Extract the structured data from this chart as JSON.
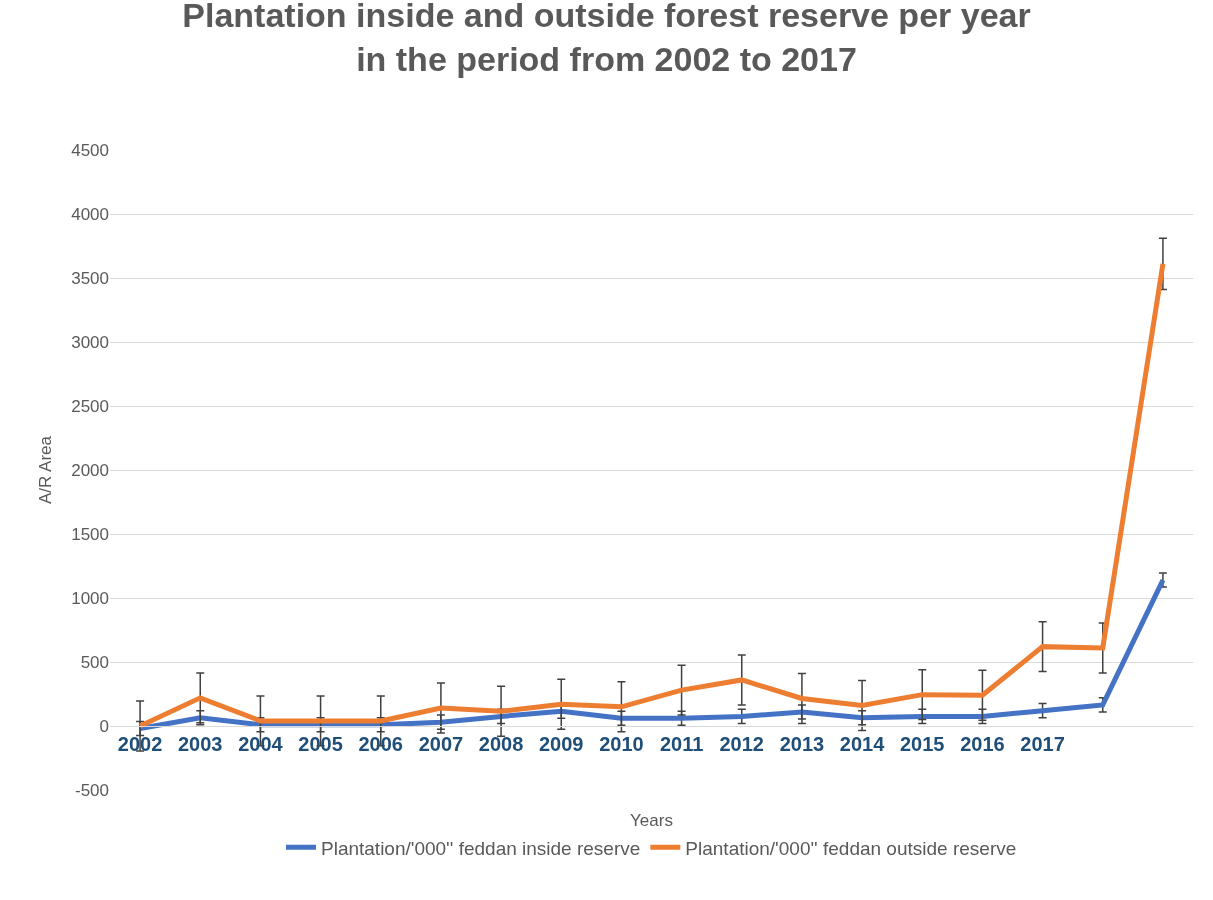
{
  "chart_data": {
    "type": "line",
    "title": "Plantation inside and outside forest reserve per year\nin the period from 2002 to 2017",
    "xlabel": "Years",
    "ylabel": "A/R Area",
    "categories": [
      "2002",
      "2003",
      "2004",
      "2005",
      "2006",
      "2007",
      "2008",
      "2009",
      "2010",
      "2011",
      "2012",
      "2013",
      "2014",
      "2015",
      "2016",
      "2017",
      null,
      null
    ],
    "series": [
      {
        "name": "Plantation/'000'' feddan inside reserve",
        "color": "#4472c4",
        "values": [
          -20,
          65,
          10,
          10,
          10,
          30,
          75,
          115,
          60,
          60,
          75,
          110,
          65,
          75,
          75,
          120,
          165,
          1140
        ],
        "errors": [
          55,
          55,
          55,
          55,
          55,
          55,
          55,
          55,
          55,
          55,
          55,
          55,
          55,
          55,
          55,
          55,
          55,
          55
        ]
      },
      {
        "name": "Plantation/'000'' feddan outside reserve",
        "color": "#ed7d31",
        "values": [
          0,
          220,
          40,
          40,
          40,
          140,
          115,
          170,
          150,
          280,
          360,
          215,
          160,
          245,
          240,
          620,
          610,
          3610
        ],
        "errors": [
          195,
          195,
          195,
          195,
          195,
          195,
          195,
          195,
          195,
          195,
          195,
          195,
          195,
          195,
          195,
          195,
          195,
          200
        ]
      }
    ],
    "ylim": [
      -500,
      4500
    ],
    "yticks": [
      -500,
      0,
      500,
      1000,
      1500,
      2000,
      2500,
      3000,
      3500,
      4000,
      4500
    ],
    "grid": "y",
    "legend": "bottom",
    "marker": "none",
    "line_style": "solid"
  }
}
